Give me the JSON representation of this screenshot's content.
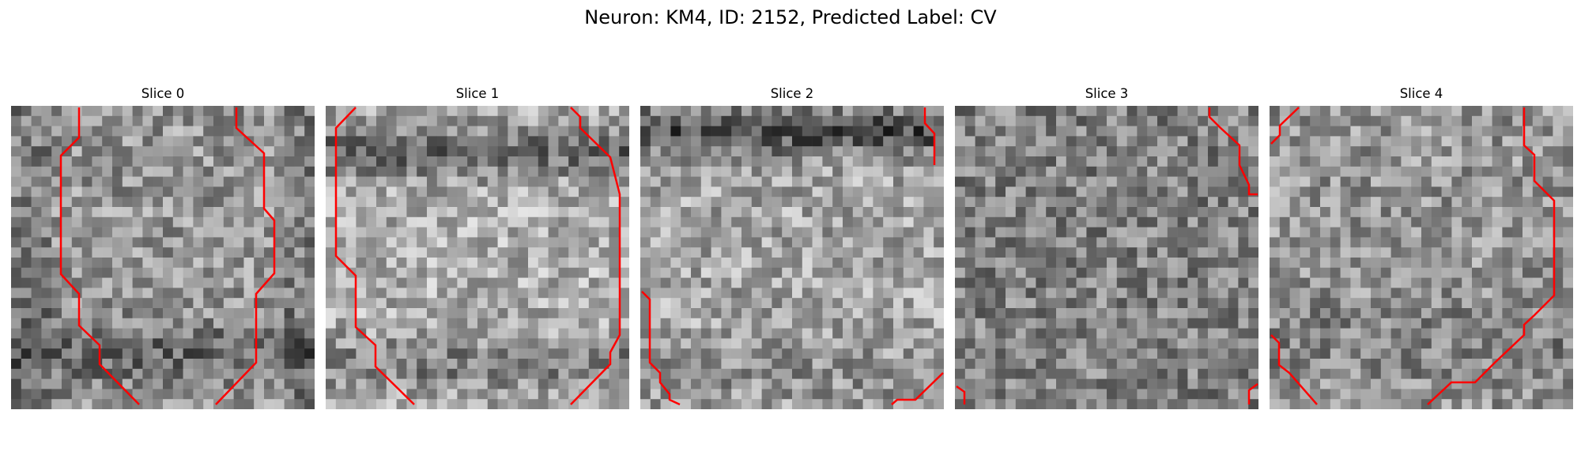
{
  "figure": {
    "title": "Neuron: KM4, ID: 2152, Predicted Label: CV"
  },
  "panels": [
    {
      "title": "Slice 0"
    },
    {
      "title": "Slice 1"
    },
    {
      "title": "Slice 2"
    },
    {
      "title": "Slice 3"
    },
    {
      "title": "Slice 4"
    }
  ],
  "colors": {
    "contour": "#ff0000",
    "background": "#ffffff"
  }
}
